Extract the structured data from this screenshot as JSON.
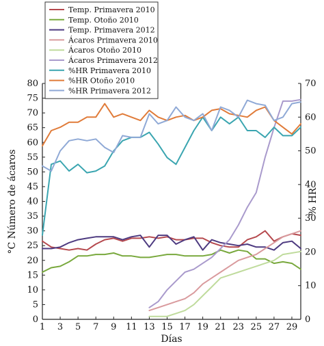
{
  "chart_data": {
    "type": "line",
    "xlabel": "Días",
    "ylabel_left": "°C Número de ácaros",
    "ylabel_right": "% HR",
    "xlim": [
      1,
      30
    ],
    "ylim_left": [
      0,
      80
    ],
    "ylim_right": [
      0,
      70
    ],
    "xticks": [
      1,
      3,
      5,
      7,
      9,
      11,
      13,
      15,
      17,
      19,
      21,
      23,
      25,
      27,
      29
    ],
    "yticks_left": [
      0,
      5,
      10,
      15,
      20,
      25,
      30,
      35,
      40,
      45,
      50,
      55,
      60,
      65,
      70,
      75,
      80
    ],
    "yticks_right": [
      0,
      10,
      20,
      30,
      40,
      50,
      60,
      70
    ],
    "legend_position": "top-left",
    "series": [
      {
        "name": "Temp. Primavera 2010",
        "color": "#b5484d",
        "axis": "left",
        "x": [
          1,
          2,
          3,
          4,
          5,
          6,
          7,
          8,
          9,
          10,
          11,
          12,
          13,
          14,
          15,
          16,
          17,
          18,
          19,
          20,
          21,
          22,
          23,
          24,
          25,
          26,
          27,
          28,
          29,
          30
        ],
        "y": [
          26.5,
          24.5,
          24,
          23.5,
          24,
          23.5,
          25.5,
          27,
          27.5,
          26.5,
          27.5,
          27.5,
          28,
          27.5,
          28,
          27,
          27,
          27.5,
          27.5,
          26,
          25,
          24.5,
          24.5,
          27,
          28,
          30,
          26.5,
          28,
          29,
          28.5
        ]
      },
      {
        "name": "Temp. Otoño 2010",
        "color": "#78a83c",
        "axis": "left",
        "x": [
          1,
          2,
          3,
          4,
          5,
          6,
          7,
          8,
          9,
          10,
          11,
          12,
          13,
          14,
          15,
          16,
          17,
          18,
          19,
          20,
          21,
          22,
          23,
          24,
          25,
          26,
          27,
          28,
          29,
          30
        ],
        "y": [
          16,
          17.5,
          18,
          19.5,
          21.5,
          21.5,
          22,
          22,
          22.5,
          21.5,
          21.5,
          21,
          21,
          21.5,
          22,
          22,
          21.5,
          21.5,
          21.5,
          22,
          23.5,
          22.5,
          23.5,
          23,
          20.5,
          20.5,
          19,
          19.5,
          19,
          17
        ]
      },
      {
        "name": "Temp. Primavera 2012",
        "color": "#4d3a80",
        "axis": "left",
        "x": [
          1,
          2,
          3,
          4,
          5,
          6,
          7,
          8,
          9,
          10,
          11,
          12,
          13,
          14,
          15,
          16,
          17,
          18,
          19,
          20,
          21,
          22,
          23,
          24,
          25,
          26,
          27,
          28,
          29,
          30
        ],
        "y": [
          24,
          24,
          24.5,
          26,
          27,
          27.5,
          28,
          28,
          28,
          27,
          28,
          28.5,
          24.5,
          28.5,
          28.5,
          25.5,
          27,
          28,
          23.5,
          27,
          26,
          25.5,
          25,
          25.5,
          24.5,
          24.5,
          23.5,
          26,
          26.5,
          24
        ]
      },
      {
        "name": "Ácaros Primavera 2010",
        "color": "#d99a9d",
        "axis": "left",
        "x": [
          13,
          14,
          15,
          16,
          17,
          18,
          19,
          20,
          21,
          22,
          23,
          24,
          25,
          26,
          27,
          28,
          29,
          30
        ],
        "y": [
          3,
          4,
          5,
          6,
          7,
          9,
          12,
          14,
          16,
          18,
          20,
          21,
          22,
          24,
          26,
          28,
          29,
          30
        ]
      },
      {
        "name": "Ácaros Otoño 2010",
        "color": "#bfdb9c",
        "axis": "left",
        "x": [
          13,
          14,
          15,
          16,
          17,
          18,
          19,
          20,
          21,
          22,
          23,
          24,
          25,
          26,
          27,
          28,
          29,
          30
        ],
        "y": [
          1,
          1,
          1,
          2,
          3,
          5,
          8,
          11,
          14,
          15,
          16,
          17,
          18,
          19,
          20,
          22,
          22.5,
          23
        ]
      },
      {
        "name": "Ácaros Primavera 2012",
        "color": "#a99acc",
        "axis": "left",
        "x": [
          13,
          14,
          15,
          16,
          17,
          18,
          19,
          20,
          21,
          22,
          23,
          24,
          25,
          26,
          27,
          28,
          29,
          30
        ],
        "y": [
          4,
          6,
          10,
          13,
          16,
          17,
          19,
          21,
          24,
          27,
          32,
          38,
          43,
          55,
          65,
          74,
          74,
          74.5
        ]
      },
      {
        "name": "%HR Primavera 2010",
        "color": "#3aa5b0",
        "axis": "right",
        "x": [
          1,
          2,
          3,
          4,
          5,
          6,
          7,
          8,
          9,
          10,
          11,
          12,
          13,
          14,
          15,
          16,
          17,
          18,
          19,
          20,
          21,
          22,
          23,
          24,
          25,
          26,
          27,
          28,
          29,
          30
        ],
        "y": [
          25,
          46,
          47,
          44,
          46,
          43.5,
          44,
          45.5,
          50,
          53,
          54,
          54,
          55.5,
          52,
          48,
          46,
          51,
          56,
          60,
          56,
          60,
          58,
          60,
          56,
          56,
          54,
          57,
          54.5,
          54.5,
          57
        ]
      },
      {
        "name": "%HR Otoño 2010",
        "color": "#e07b39",
        "axis": "right",
        "x": [
          1,
          2,
          3,
          4,
          5,
          6,
          7,
          8,
          9,
          10,
          11,
          12,
          13,
          14,
          15,
          16,
          17,
          18,
          19,
          20,
          21,
          22,
          23,
          24,
          25,
          26,
          27,
          28,
          29,
          30
        ],
        "y": [
          51.5,
          56,
          57,
          58.5,
          58.5,
          60,
          60,
          64,
          60,
          61,
          60,
          59,
          62,
          60,
          59,
          60,
          60.5,
          59,
          60,
          62,
          62.5,
          61,
          60.5,
          60,
          62,
          63,
          59,
          57,
          55,
          58
        ]
      },
      {
        "name": "%HR Primavera 2012",
        "color": "#8fa9d6",
        "axis": "right",
        "x": [
          1,
          2,
          3,
          4,
          5,
          6,
          7,
          8,
          9,
          10,
          11,
          12,
          13,
          14,
          15,
          16,
          17,
          18,
          19,
          20,
          21,
          22,
          23,
          24,
          25,
          26,
          27,
          28,
          29,
          30
        ],
        "y": [
          45.5,
          44,
          50,
          53,
          53.5,
          53,
          53.5,
          51,
          49.5,
          54.5,
          54,
          54,
          61,
          58,
          59,
          63,
          60,
          59,
          61,
          56,
          63,
          62,
          60,
          65,
          64,
          63.5,
          59,
          60,
          64,
          64.5
        ]
      }
    ]
  }
}
